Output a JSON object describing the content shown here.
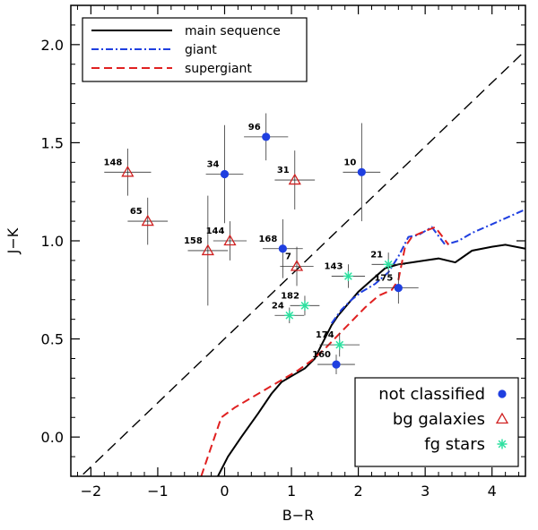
{
  "chart_data": {
    "type": "scatter",
    "xlabel": "B−R",
    "ylabel": "J−K",
    "xlim": [
      -2.3,
      4.5
    ],
    "ylim": [
      -0.2,
      2.2
    ],
    "x_ticks": [
      -2,
      -1,
      0,
      1,
      2,
      3,
      4
    ],
    "x_tick_labels": [
      "−2",
      "−1",
      "0",
      "1",
      "2",
      "3",
      "4"
    ],
    "y_ticks": [
      0.0,
      0.5,
      1.0,
      1.5,
      2.0
    ],
    "y_tick_labels": [
      "0.0",
      "0.5",
      "1.0",
      "1.5",
      "2.0"
    ],
    "reference_line": {
      "style": "long-dashed",
      "color": "#000000",
      "points": [
        [
          -2.3,
          -0.25
        ],
        [
          4.5,
          1.97
        ]
      ]
    },
    "curves": [
      {
        "name": "main sequence",
        "style": "solid",
        "color": "#000000",
        "points": [
          [
            -0.1,
            -0.2
          ],
          [
            0.05,
            -0.1
          ],
          [
            0.25,
            0.0
          ],
          [
            0.5,
            0.12
          ],
          [
            0.7,
            0.22
          ],
          [
            0.85,
            0.28
          ],
          [
            1.0,
            0.31
          ],
          [
            1.2,
            0.35
          ],
          [
            1.35,
            0.4
          ],
          [
            1.45,
            0.47
          ],
          [
            1.6,
            0.57
          ],
          [
            1.7,
            0.62
          ],
          [
            1.85,
            0.68
          ],
          [
            2.0,
            0.74
          ],
          [
            2.2,
            0.8
          ],
          [
            2.4,
            0.86
          ],
          [
            2.6,
            0.88
          ],
          [
            2.8,
            0.89
          ],
          [
            3.0,
            0.9
          ],
          [
            3.2,
            0.91
          ],
          [
            3.45,
            0.89
          ],
          [
            3.7,
            0.95
          ],
          [
            4.0,
            0.97
          ],
          [
            4.2,
            0.98
          ],
          [
            4.5,
            0.96
          ]
        ]
      },
      {
        "name": "giant",
        "style": "dash-dot",
        "color": "#1f3fe0",
        "points": [
          [
            1.6,
            0.58
          ],
          [
            1.75,
            0.65
          ],
          [
            1.9,
            0.7
          ],
          [
            2.05,
            0.74
          ],
          [
            2.25,
            0.78
          ],
          [
            2.45,
            0.84
          ],
          [
            2.6,
            0.92
          ],
          [
            2.75,
            1.02
          ],
          [
            2.9,
            1.03
          ],
          [
            3.1,
            1.07
          ],
          [
            3.3,
            0.98
          ],
          [
            3.5,
            1.0
          ],
          [
            3.7,
            1.04
          ],
          [
            3.9,
            1.07
          ],
          [
            4.1,
            1.1
          ],
          [
            4.3,
            1.13
          ],
          [
            4.5,
            1.16
          ]
        ]
      },
      {
        "name": "supergiant",
        "style": "dashed",
        "color": "#e02020",
        "points": [
          [
            -0.35,
            -0.2
          ],
          [
            -0.2,
            -0.05
          ],
          [
            -0.05,
            0.1
          ],
          [
            0.15,
            0.15
          ],
          [
            0.4,
            0.2
          ],
          [
            0.65,
            0.25
          ],
          [
            0.9,
            0.3
          ],
          [
            1.1,
            0.34
          ],
          [
            1.3,
            0.39
          ],
          [
            1.5,
            0.45
          ],
          [
            1.7,
            0.52
          ],
          [
            1.9,
            0.59
          ],
          [
            2.1,
            0.66
          ],
          [
            2.3,
            0.72
          ],
          [
            2.5,
            0.75
          ],
          [
            2.6,
            0.8
          ],
          [
            2.7,
            0.97
          ],
          [
            2.8,
            1.02
          ],
          [
            3.0,
            1.05
          ],
          [
            3.15,
            1.07
          ],
          [
            3.35,
            0.98
          ]
        ]
      }
    ],
    "point_groups": [
      {
        "name": "not classified",
        "marker": "circle",
        "color": "#1f3fe0",
        "points": [
          {
            "label": "96",
            "x": 0.62,
            "y": 1.53,
            "xerr": 0.33,
            "yerr": 0.12
          },
          {
            "label": "34",
            "x": 0.0,
            "y": 1.34,
            "xerr": 0.28,
            "yerr": 0.25
          },
          {
            "label": "10",
            "x": 2.05,
            "y": 1.35,
            "xerr": 0.28,
            "yerr": 0.25
          },
          {
            "label": "168",
            "x": 0.87,
            "y": 0.96,
            "xerr": 0.3,
            "yerr": 0.15
          },
          {
            "label": "175",
            "x": 2.6,
            "y": 0.76,
            "xerr": 0.3,
            "yerr": 0.08
          },
          {
            "label": "160",
            "x": 1.67,
            "y": 0.37,
            "xerr": 0.28,
            "yerr": 0.05
          }
        ]
      },
      {
        "name": "bg galaxies",
        "marker": "triangle",
        "color": "#d02020",
        "points": [
          {
            "label": "148",
            "x": -1.45,
            "y": 1.35,
            "xerr": 0.35,
            "yerr": 0.12
          },
          {
            "label": "65",
            "x": -1.15,
            "y": 1.1,
            "xerr": 0.3,
            "yerr": 0.12
          },
          {
            "label": "31",
            "x": 1.05,
            "y": 1.31,
            "xerr": 0.3,
            "yerr": 0.15
          },
          {
            "label": "144",
            "x": 0.08,
            "y": 1.0,
            "xerr": 0.25,
            "yerr": 0.1
          },
          {
            "label": "158",
            "x": -0.25,
            "y": 0.95,
            "xerr": 0.3,
            "yerr": 0.28
          },
          {
            "label": "7",
            "x": 1.08,
            "y": 0.87,
            "xerr": 0.25,
            "yerr": 0.1
          }
        ]
      },
      {
        "name": "fg stars",
        "marker": "asterisk",
        "color": "#2ee0a0",
        "points": [
          {
            "label": "143",
            "x": 1.85,
            "y": 0.82,
            "xerr": 0.25,
            "yerr": 0.06
          },
          {
            "label": "21",
            "x": 2.45,
            "y": 0.88,
            "xerr": 0.25,
            "yerr": 0.06
          },
          {
            "label": "182",
            "x": 1.2,
            "y": 0.67,
            "xerr": 0.22,
            "yerr": 0.05
          },
          {
            "label": "24",
            "x": 0.97,
            "y": 0.62,
            "xerr": 0.22,
            "yerr": 0.04
          },
          {
            "label": "174",
            "x": 1.72,
            "y": 0.47,
            "xerr": 0.3,
            "yerr": 0.06
          }
        ]
      }
    ],
    "legends": [
      {
        "placement": "top-left",
        "entries": [
          "main sequence",
          "giant",
          "supergiant"
        ]
      },
      {
        "placement": "bottom-right",
        "entries": [
          "not classified",
          "bg galaxies",
          "fg stars"
        ]
      }
    ]
  }
}
